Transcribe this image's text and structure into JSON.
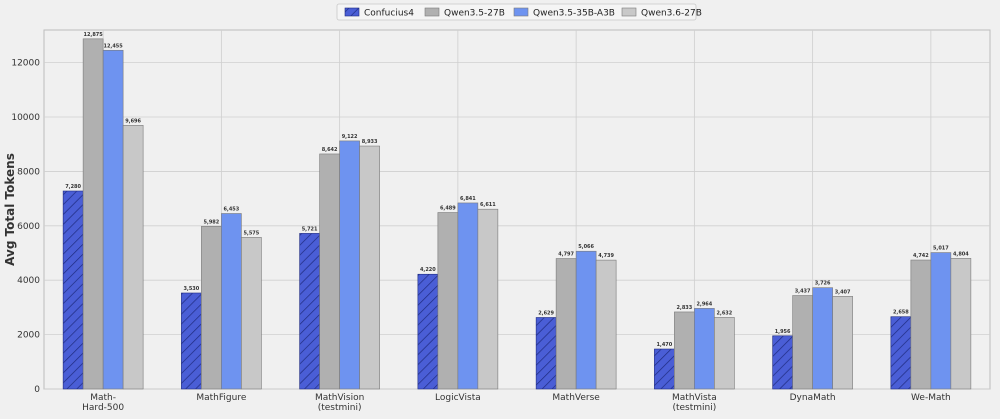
{
  "chart_data": {
    "type": "bar",
    "xlabel": "",
    "ylabel": "Avg Total Tokens",
    "ylim": [
      0,
      13200
    ],
    "yticks": [
      0,
      2000,
      4000,
      6000,
      8000,
      10000,
      12000
    ],
    "grid": true,
    "legend_position": "top-center",
    "categories": [
      "Math-\nHard-500",
      "MathFigure",
      "MathVision\n(testmini)",
      "LogicVista",
      "MathVerse",
      "MathVista\n(testmini)",
      "DynaMath",
      "We-Math"
    ],
    "series": [
      {
        "name": "Confucius4",
        "values": [
          7280,
          3530,
          5721,
          4220,
          2629,
          1470,
          1956,
          2658
        ],
        "labels": [
          "7,280",
          "3,530",
          "5,721",
          "4,220",
          "2,629",
          "1,470",
          "1,956",
          "2,658"
        ],
        "color": "#4a5ed6",
        "hatch": true
      },
      {
        "name": "Qwen3.5-27B",
        "values": [
          12875,
          5982,
          8642,
          6489,
          4797,
          2833,
          3437,
          4742
        ],
        "labels": [
          "12,875",
          "5,982",
          "8,642",
          "6,489",
          "4,797",
          "2,833",
          "3,437",
          "4,742"
        ],
        "color": "#b0b0b0",
        "hatch": false
      },
      {
        "name": "Qwen3.5-35B-A3B",
        "values": [
          12455,
          6453,
          9122,
          6841,
          5066,
          2964,
          3726,
          5017
        ],
        "labels": [
          "12,455",
          "6,453",
          "9,122",
          "6,841",
          "5,066",
          "2,964",
          "3,726",
          "5,017"
        ],
        "color": "#6e93f0",
        "hatch": false
      },
      {
        "name": "Qwen3.6-27B",
        "values": [
          9696,
          5575,
          8933,
          6611,
          4739,
          2632,
          3407,
          4804
        ],
        "labels": [
          "9,696",
          "5,575",
          "8,933",
          "6,611",
          "4,739",
          "2,632",
          "3,407",
          "4,804"
        ],
        "color": "#c8c8c8",
        "hatch": false
      }
    ]
  }
}
